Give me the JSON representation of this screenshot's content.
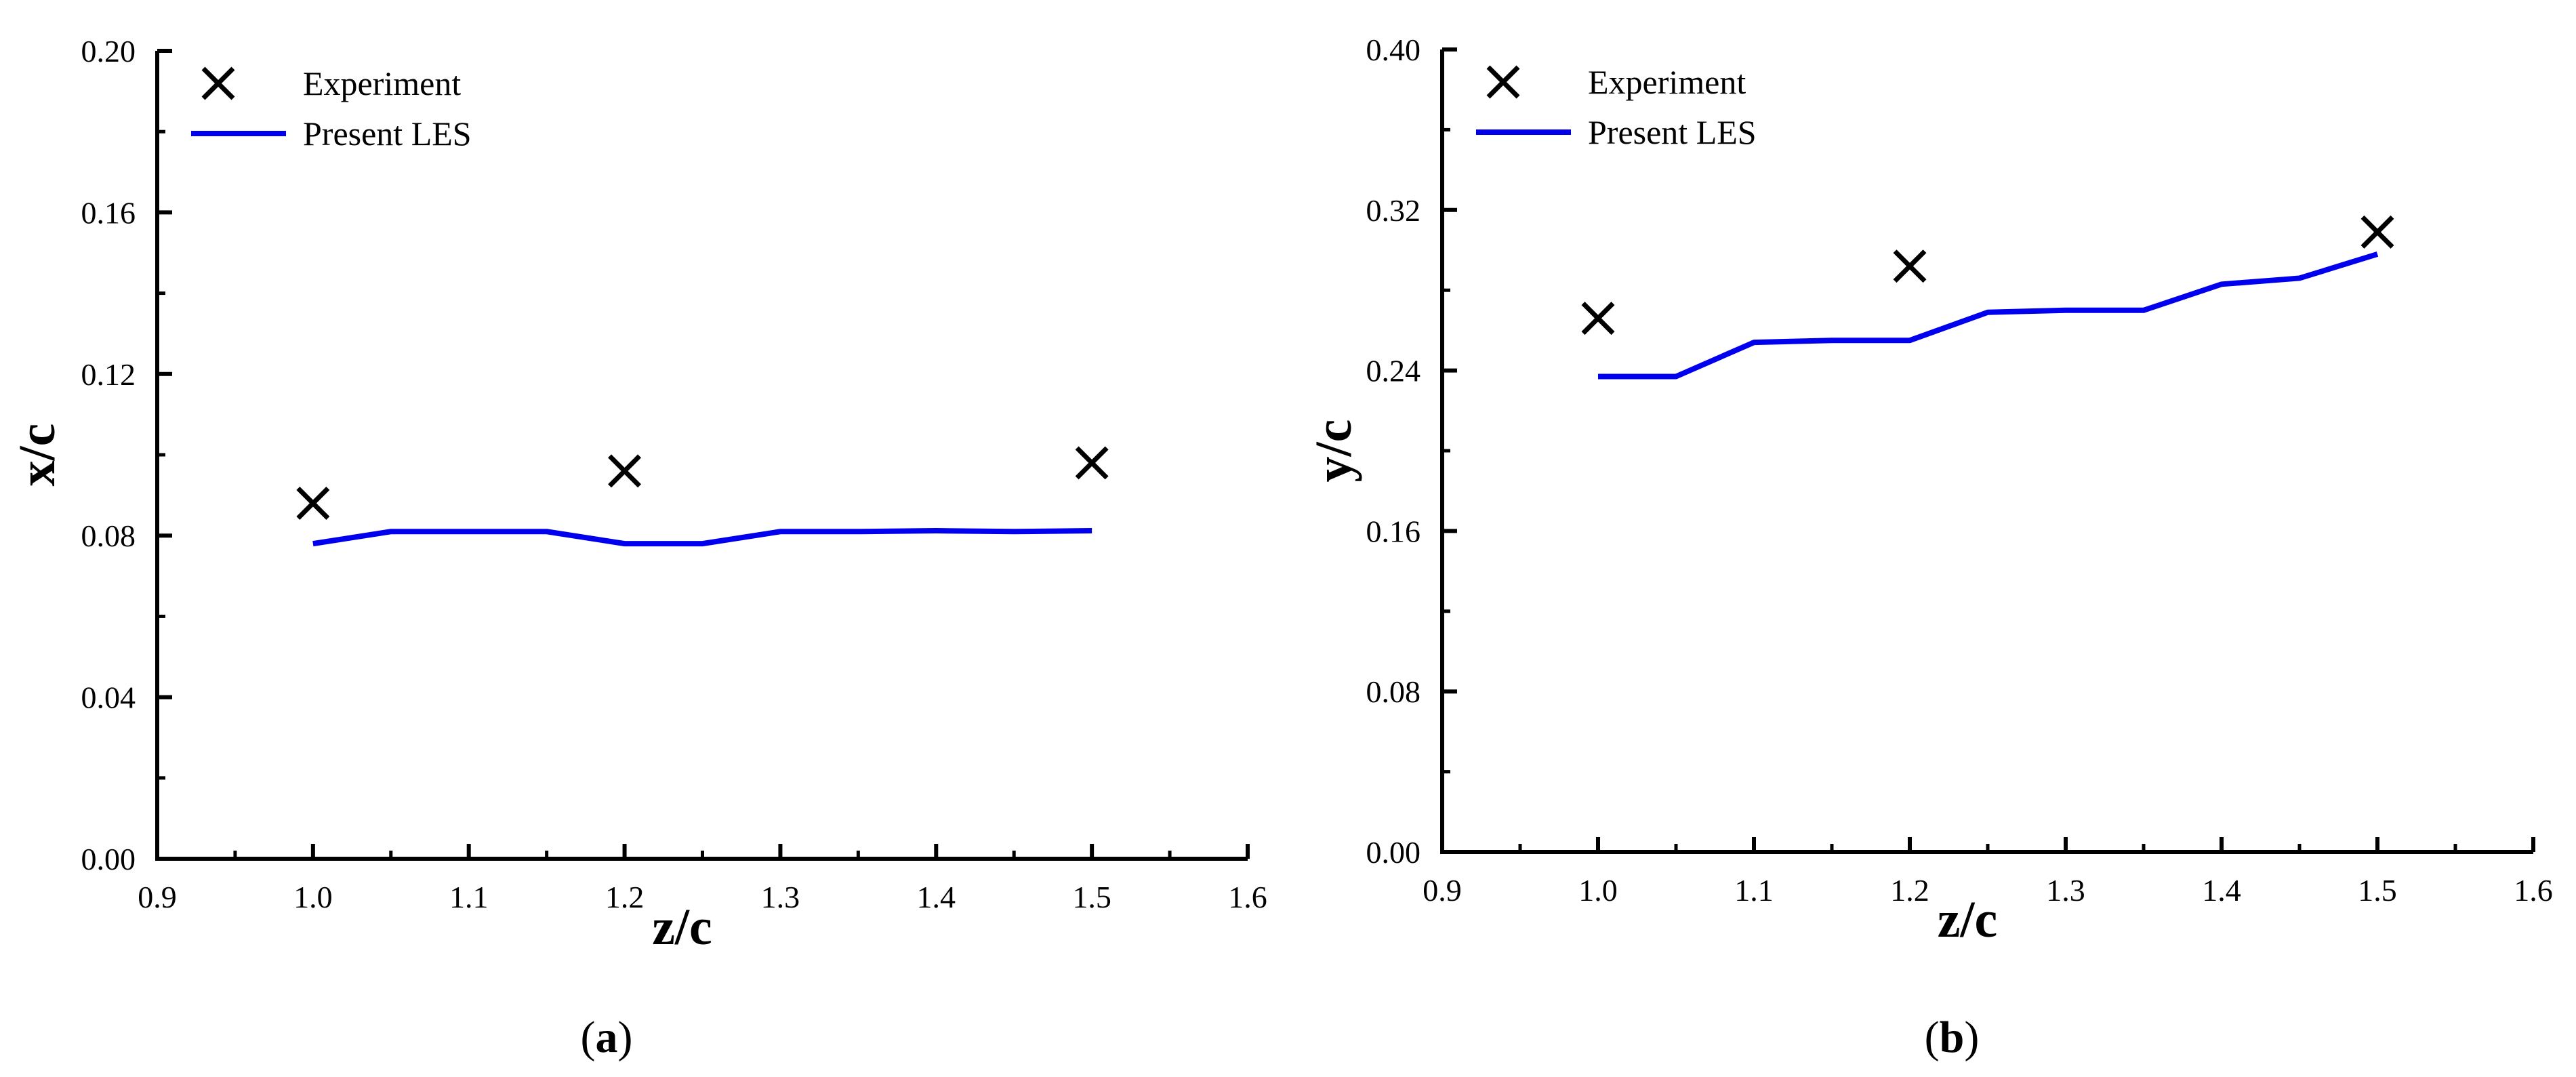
{
  "colors": {
    "axis": "#000000",
    "experiment": "#000000",
    "les": "#0000ee"
  },
  "chart_data": [
    {
      "type": "line",
      "panel": "a",
      "caption": {
        "open": "(",
        "letter": "a",
        "close": ")"
      },
      "xlabel": "z/c",
      "ylabel": "x/c",
      "xlim": [
        0.9,
        1.6
      ],
      "ylim": [
        0.0,
        0.2
      ],
      "xticks": [
        "0.9",
        "1.0",
        "1.1",
        "1.2",
        "1.3",
        "1.4",
        "1.5",
        "1.6"
      ],
      "yticks": [
        "0.00",
        "0.04",
        "0.08",
        "0.12",
        "0.16",
        "0.20"
      ],
      "legend": {
        "position": "top-left",
        "entries": [
          "Experiment",
          "Present LES"
        ]
      },
      "series": [
        {
          "name": "Experiment",
          "marker": "x",
          "x": [
            1.0,
            1.2,
            1.5
          ],
          "y": [
            0.088,
            0.096,
            0.098
          ]
        },
        {
          "name": "Present LES",
          "marker": "line",
          "x": [
            1.0,
            1.05,
            1.1,
            1.15,
            1.2,
            1.25,
            1.3,
            1.35,
            1.4,
            1.45,
            1.5
          ],
          "y": [
            0.078,
            0.081,
            0.081,
            0.081,
            0.078,
            0.078,
            0.081,
            0.081,
            0.0812,
            0.081,
            0.0812
          ]
        }
      ]
    },
    {
      "type": "line",
      "panel": "b",
      "caption": {
        "open": "(",
        "letter": "b",
        "close": ")"
      },
      "xlabel": "z/c",
      "ylabel": "y/c",
      "xlim": [
        0.9,
        1.6
      ],
      "ylim": [
        0.0,
        0.4
      ],
      "xticks": [
        "0.9",
        "1.0",
        "1.1",
        "1.2",
        "1.3",
        "1.4",
        "1.5",
        "1.6"
      ],
      "yticks": [
        "0.00",
        "0.08",
        "0.16",
        "0.24",
        "0.32",
        "0.40"
      ],
      "legend": {
        "position": "top-left",
        "entries": [
          "Experiment",
          "Present LES"
        ]
      },
      "series": [
        {
          "name": "Experiment",
          "marker": "x",
          "x": [
            1.0,
            1.2,
            1.5
          ],
          "y": [
            0.266,
            0.292,
            0.309
          ]
        },
        {
          "name": "Present LES",
          "marker": "line",
          "x": [
            1.0,
            1.05,
            1.1,
            1.15,
            1.2,
            1.25,
            1.3,
            1.35,
            1.4,
            1.45,
            1.5
          ],
          "y": [
            0.237,
            0.237,
            0.254,
            0.255,
            0.255,
            0.269,
            0.27,
            0.27,
            0.283,
            0.286,
            0.298
          ]
        }
      ]
    }
  ]
}
